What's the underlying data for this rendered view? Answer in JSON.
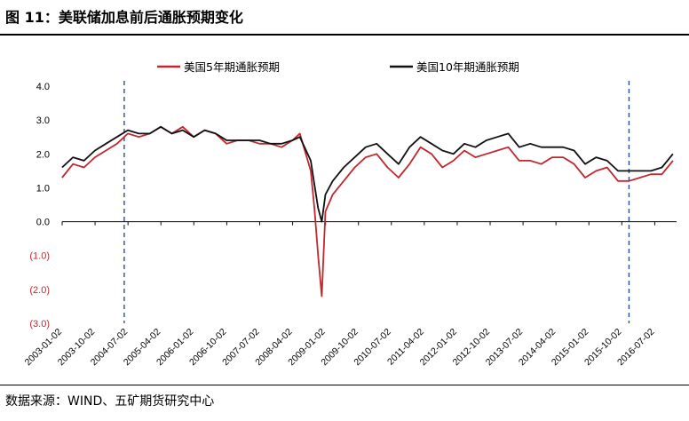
{
  "figure": {
    "title": "图 11：美联储加息前后通胀预期变化",
    "source": "数据来源：WIND、五矿期货研究中心"
  },
  "colors": {
    "series_5y": "#c0282e",
    "series_10y": "#111111",
    "negative_tick": "#c0282e",
    "marker_line": "#2b4aa0"
  },
  "chart_data": {
    "type": "line",
    "title": "",
    "xlabel": "",
    "ylabel": "",
    "ylim": [
      -3.0,
      4.0
    ],
    "yticks": [
      4.0,
      3.0,
      2.0,
      1.0,
      0.0,
      -1.0,
      -2.0,
      -3.0
    ],
    "ytick_labels": [
      "4.0",
      "3.0",
      "2.0",
      "1.0",
      "0.0",
      "(1.0)",
      "(2.0)",
      "(3.0)"
    ],
    "x_tick_labels": [
      "2003-01-02",
      "2003-10-02",
      "2004-07-02",
      "2005-04-02",
      "2006-01-02",
      "2006-10-02",
      "2007-07-02",
      "2008-04-02",
      "2009-01-02",
      "2009-10-02",
      "2010-07-02",
      "2011-04-02",
      "2012-01-02",
      "2012-10-02",
      "2013-07-02",
      "2014-04-02",
      "2015-01-02",
      "2015-10-02",
      "2016-07-02"
    ],
    "legend_position": "top",
    "grid": false,
    "vertical_markers": [
      "2004-06",
      "2015-12"
    ],
    "series": [
      {
        "name": "美国5年期通胀预期",
        "x": [
          "2003-01",
          "2003-04",
          "2003-07",
          "2003-10",
          "2004-01",
          "2004-04",
          "2004-07",
          "2004-10",
          "2005-01",
          "2005-04",
          "2005-07",
          "2005-10",
          "2006-01",
          "2006-04",
          "2006-07",
          "2006-10",
          "2007-01",
          "2007-04",
          "2007-07",
          "2007-10",
          "2008-01",
          "2008-04",
          "2008-06",
          "2008-09",
          "2008-10",
          "2008-11",
          "2008-12",
          "2009-01",
          "2009-03",
          "2009-06",
          "2009-09",
          "2009-12",
          "2010-03",
          "2010-06",
          "2010-09",
          "2010-12",
          "2011-03",
          "2011-06",
          "2011-09",
          "2011-12",
          "2012-03",
          "2012-06",
          "2012-09",
          "2012-12",
          "2013-03",
          "2013-06",
          "2013-09",
          "2013-12",
          "2014-03",
          "2014-06",
          "2014-09",
          "2014-12",
          "2015-03",
          "2015-06",
          "2015-09",
          "2015-12",
          "2016-03",
          "2016-06",
          "2016-09",
          "2016-12"
        ],
        "values": [
          1.3,
          1.7,
          1.6,
          1.9,
          2.1,
          2.3,
          2.6,
          2.5,
          2.6,
          2.8,
          2.6,
          2.8,
          2.5,
          2.7,
          2.6,
          2.3,
          2.4,
          2.4,
          2.3,
          2.3,
          2.2,
          2.4,
          2.6,
          1.5,
          0.4,
          -1.0,
          -2.2,
          0.3,
          0.8,
          1.2,
          1.6,
          1.9,
          2.0,
          1.6,
          1.3,
          1.7,
          2.2,
          2.0,
          1.6,
          1.8,
          2.1,
          1.9,
          2.0,
          2.1,
          2.2,
          1.8,
          1.8,
          1.7,
          1.9,
          1.9,
          1.7,
          1.3,
          1.5,
          1.6,
          1.2,
          1.2,
          1.3,
          1.4,
          1.4,
          1.8
        ]
      },
      {
        "name": "美国10年期通胀预期",
        "x": [
          "2003-01",
          "2003-04",
          "2003-07",
          "2003-10",
          "2004-01",
          "2004-04",
          "2004-07",
          "2004-10",
          "2005-01",
          "2005-04",
          "2005-07",
          "2005-10",
          "2006-01",
          "2006-04",
          "2006-07",
          "2006-10",
          "2007-01",
          "2007-04",
          "2007-07",
          "2007-10",
          "2008-01",
          "2008-04",
          "2008-06",
          "2008-09",
          "2008-10",
          "2008-11",
          "2008-12",
          "2009-01",
          "2009-03",
          "2009-06",
          "2009-09",
          "2009-12",
          "2010-03",
          "2010-06",
          "2010-09",
          "2010-12",
          "2011-03",
          "2011-06",
          "2011-09",
          "2011-12",
          "2012-03",
          "2012-06",
          "2012-09",
          "2012-12",
          "2013-03",
          "2013-06",
          "2013-09",
          "2013-12",
          "2014-03",
          "2014-06",
          "2014-09",
          "2014-12",
          "2015-03",
          "2015-06",
          "2015-09",
          "2015-12",
          "2016-03",
          "2016-06",
          "2016-09",
          "2016-12"
        ],
        "values": [
          1.6,
          1.9,
          1.8,
          2.1,
          2.3,
          2.5,
          2.7,
          2.6,
          2.6,
          2.8,
          2.6,
          2.7,
          2.5,
          2.7,
          2.6,
          2.4,
          2.4,
          2.4,
          2.4,
          2.3,
          2.3,
          2.4,
          2.5,
          1.8,
          1.1,
          0.4,
          0.0,
          0.8,
          1.2,
          1.6,
          1.9,
          2.2,
          2.3,
          2.0,
          1.7,
          2.2,
          2.5,
          2.3,
          2.1,
          2.0,
          2.3,
          2.2,
          2.4,
          2.5,
          2.6,
          2.2,
          2.3,
          2.2,
          2.2,
          2.2,
          2.1,
          1.7,
          1.9,
          1.8,
          1.5,
          1.5,
          1.5,
          1.5,
          1.6,
          2.0
        ]
      }
    ]
  }
}
